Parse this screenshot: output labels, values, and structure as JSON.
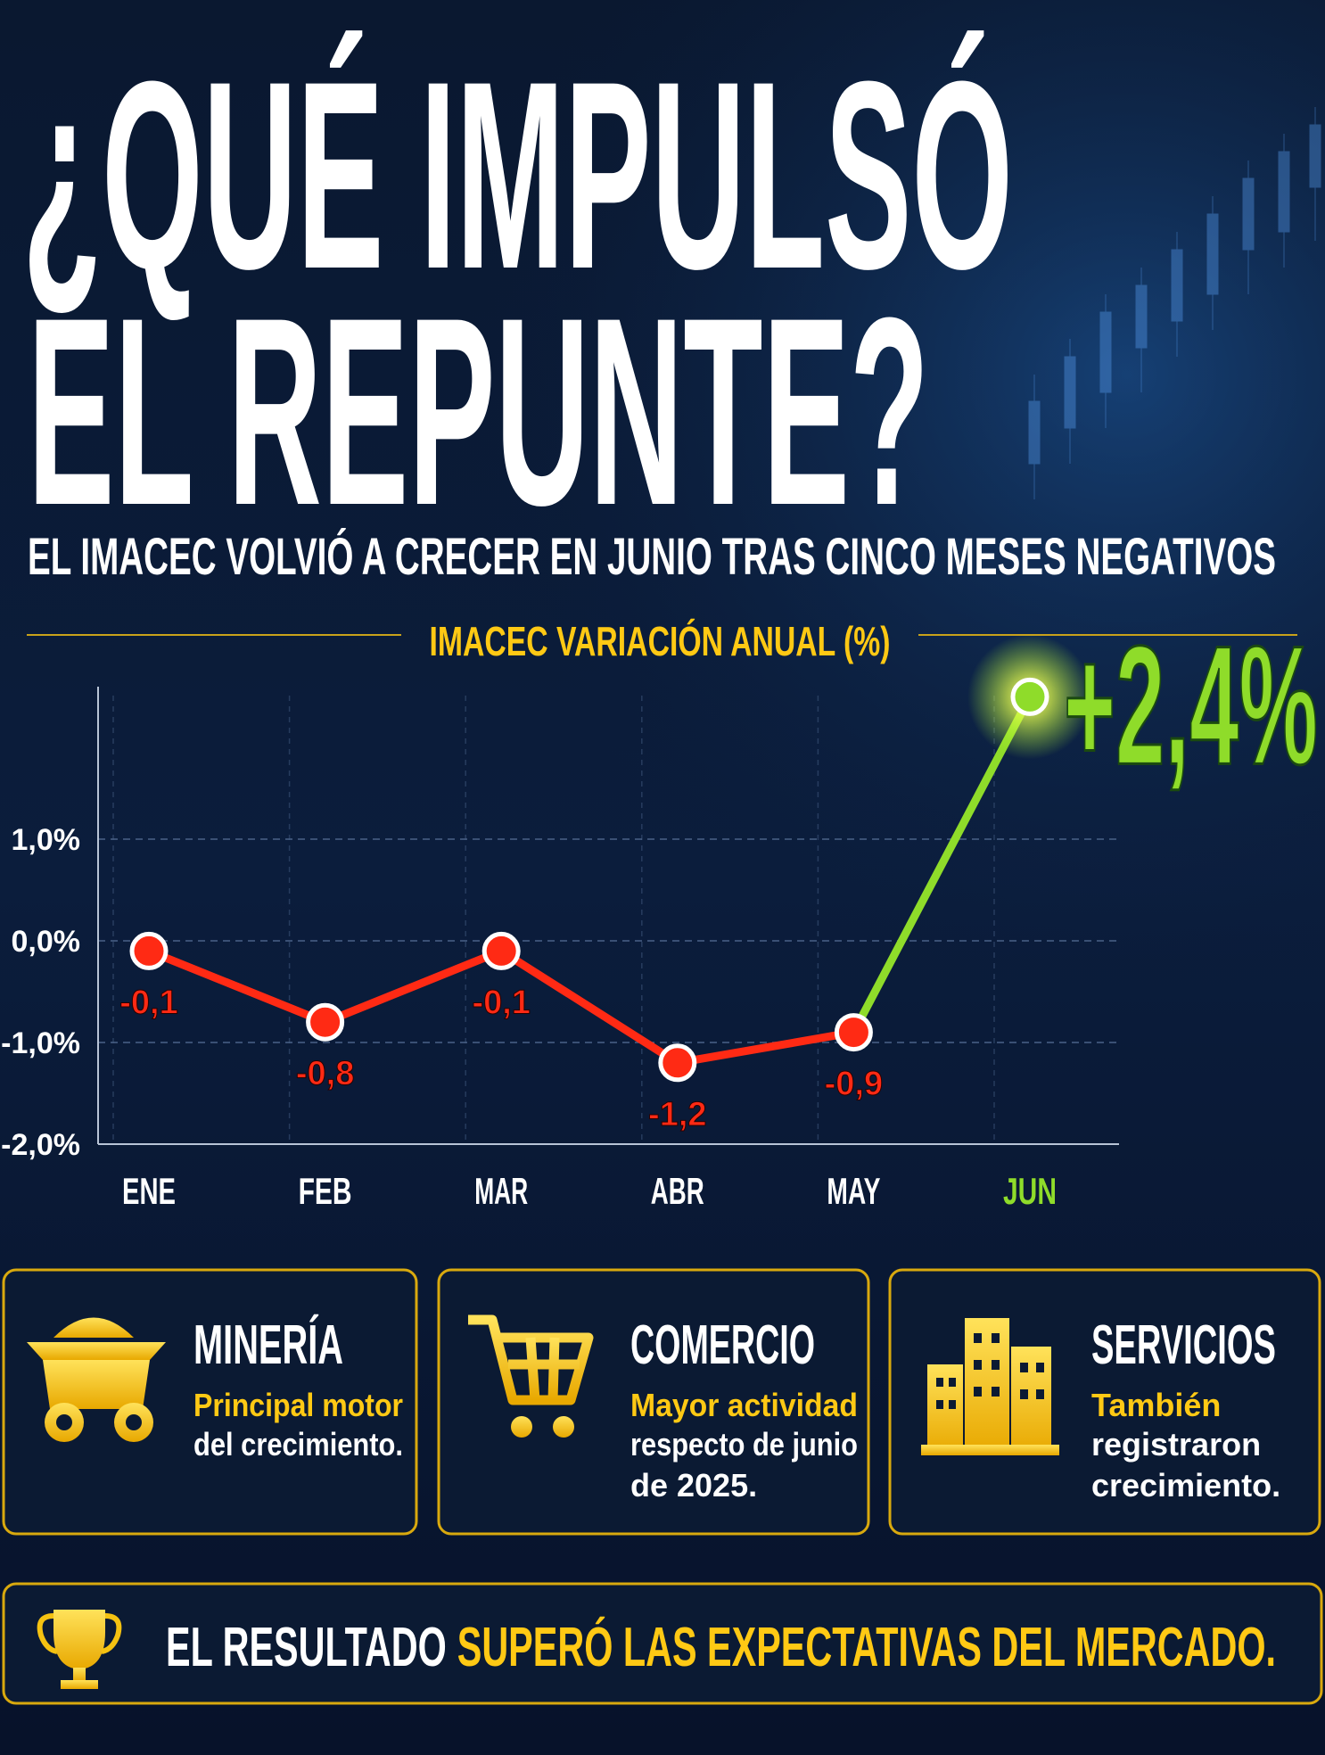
{
  "header": {
    "title_lines": [
      "¿QUÉ IMPULSÓ",
      "EL REPUNTE?"
    ],
    "subtitle": "EL IMACEC VOLVIÓ A CRECER EN JUNIO TRAS CINCO MESES NEGATIVOS"
  },
  "chart_data": {
    "type": "line",
    "title": "IMACEC VARIACIÓN ANUAL (%)",
    "categories": [
      "ENE",
      "FEB",
      "MAR",
      "ABR",
      "MAY",
      "JUN"
    ],
    "values": [
      -0.1,
      -0.8,
      -0.1,
      -1.2,
      -0.9,
      2.4
    ],
    "value_labels": [
      "-0,1",
      "-0,8",
      "-0,1",
      "-1,2",
      "-0,9",
      "+2,4%"
    ],
    "color": "#ff2a14",
    "highlight_color": "#8fdc2a",
    "ylim": [
      -2,
      2.5
    ],
    "yticks": [
      {
        "value": 1,
        "label": "1,0%"
      },
      {
        "value": 0,
        "label": "0,0%"
      },
      {
        "value": -1,
        "label": "-1,0%"
      },
      {
        "value": -2,
        "label": "-2,0%"
      }
    ],
    "grid": true
  },
  "cards": [
    {
      "title": "MINERÍA",
      "highlight": "Principal motor",
      "lines": [
        "del crecimiento."
      ]
    },
    {
      "title": "COMERCIO",
      "highlight": "Mayor actividad",
      "lines": [
        "respecto de junio",
        "de 2025."
      ]
    },
    {
      "title": "SERVICIOS",
      "highlight": "También",
      "lines": [
        "registraron",
        "crecimiento."
      ]
    }
  ],
  "footer": {
    "text": "EL RESULTADO",
    "highlight": "SUPERÓ LAS EXPECTATIVAS DEL MERCADO."
  }
}
